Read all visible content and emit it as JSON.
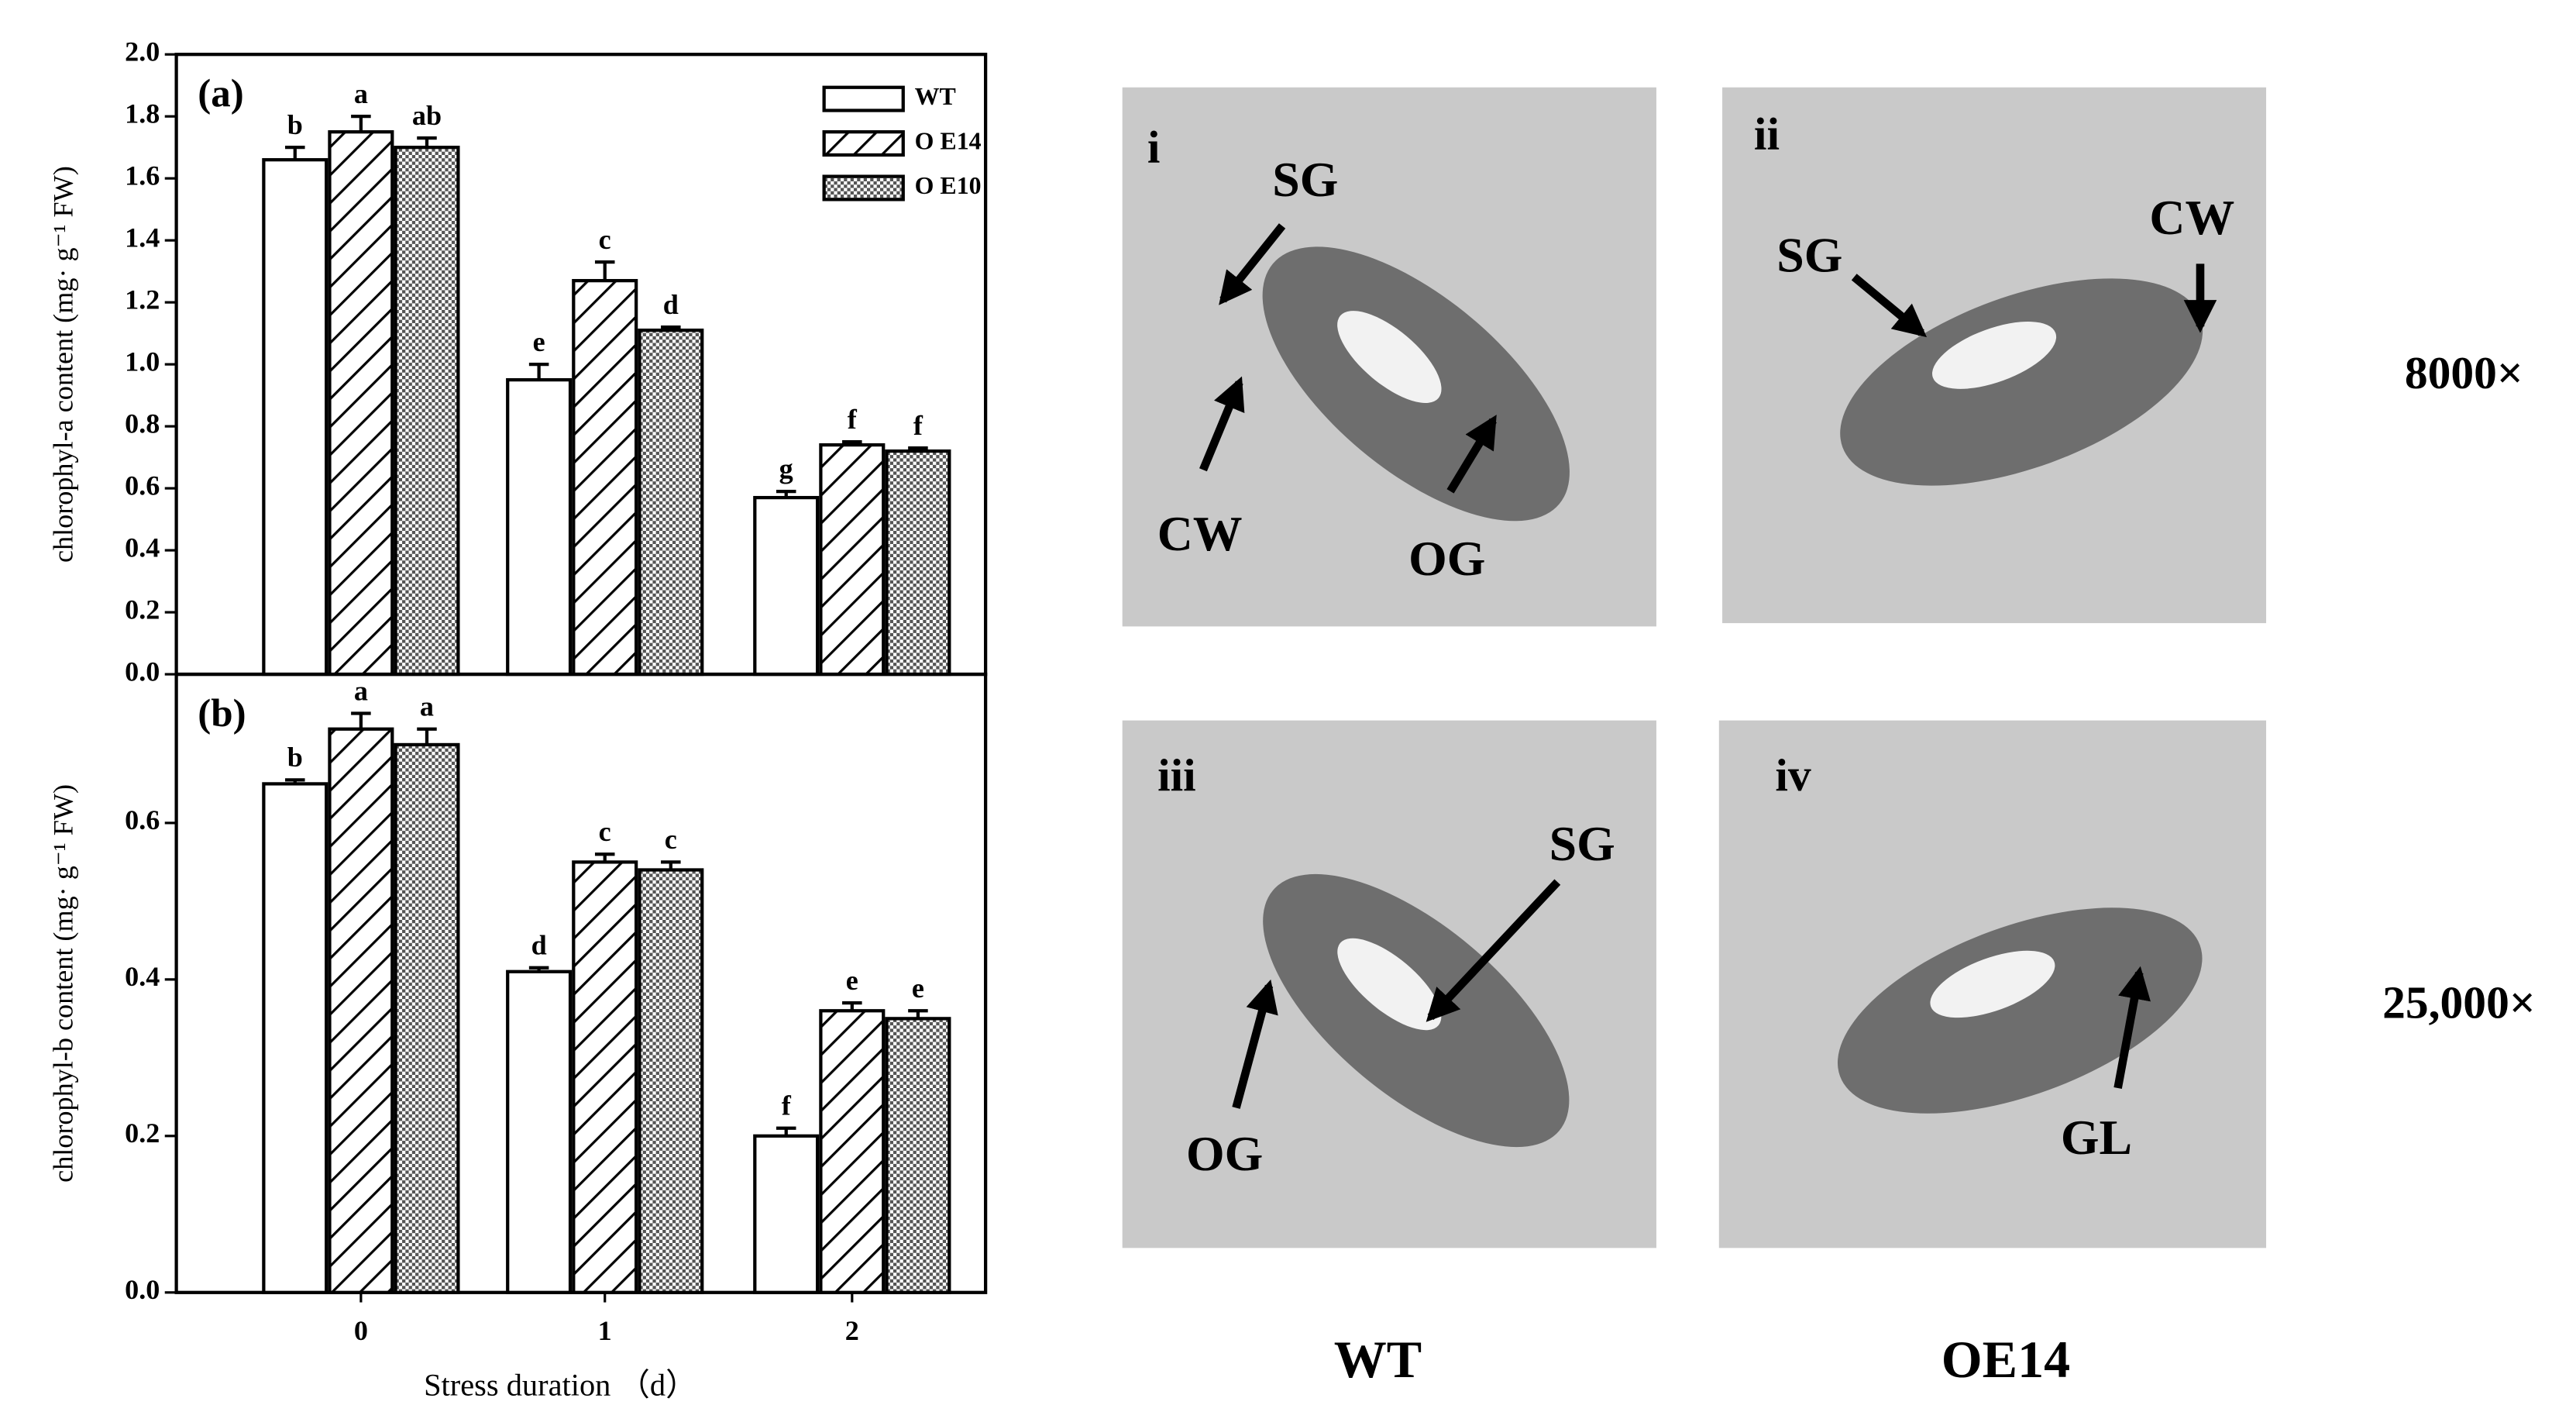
{
  "chart_data": [
    {
      "type": "bar",
      "panel_label": "(a)",
      "ylabel": "chlorophyl-a content (mg· g⁻¹ FW)",
      "ylim": [
        0,
        2.0
      ],
      "yticks": [
        {
          "value": 0,
          "label": "0.0"
        },
        0.2,
        0.4,
        0.6,
        0.8,
        {
          "value": 1,
          "label": "1.0"
        },
        1.2,
        1.4,
        1.6,
        1.8,
        {
          "value": 2,
          "label": "2.0"
        }
      ],
      "legend": "upper right",
      "series": [
        {
          "name": "WT",
          "pattern": "none",
          "values": [
            1.66,
            0.95,
            0.57
          ],
          "errors": [
            0.04,
            0.05,
            0.02
          ],
          "letters": [
            "b",
            "e",
            "g"
          ]
        },
        {
          "name": "O E14",
          "pattern": "hatch",
          "values": [
            1.75,
            1.27,
            0.74
          ],
          "errors": [
            0.05,
            0.06,
            0.01
          ],
          "letters": [
            "a",
            "c",
            "f"
          ]
        },
        {
          "name": "O E10",
          "pattern": "dots",
          "values": [
            1.7,
            1.11,
            0.72
          ],
          "errors": [
            0.03,
            0.01,
            0.01
          ],
          "letters": [
            "ab",
            "d",
            "f"
          ]
        }
      ]
    },
    {
      "type": "bar",
      "panel_label": "(b)",
      "ylabel": "chlorophyl-b content (mg· g⁻¹ FW)",
      "xlabel": "Stress duration （d）",
      "categories": [
        "0",
        "1",
        "2"
      ],
      "ylim": [
        0,
        0.79
      ],
      "yticks": [
        {
          "value": 0,
          "label": "0.0"
        },
        0.2,
        0.4,
        0.6
      ],
      "series": [
        {
          "pattern": "none",
          "values": [
            0.65,
            0.41,
            0.2
          ],
          "errors": [
            0.005,
            0.005,
            0.01
          ],
          "letters": [
            "b",
            "d",
            "f"
          ]
        },
        {
          "pattern": "hatch",
          "values": [
            0.72,
            0.55,
            0.36
          ],
          "errors": [
            0.02,
            0.01,
            0.01
          ],
          "letters": [
            "a",
            "c",
            "e"
          ]
        },
        {
          "pattern": "dots",
          "values": [
            0.7,
            0.54,
            0.35
          ],
          "errors": [
            0.02,
            0.01,
            0.01
          ],
          "letters": [
            "a",
            "c",
            "e"
          ]
        }
      ]
    }
  ],
  "micrographs": [
    {
      "label": "i",
      "annotations": [
        "SG",
        "CW",
        "OG"
      ]
    },
    {
      "label": "ii",
      "annotations": [
        "SG",
        "CW"
      ]
    },
    {
      "label": "iii",
      "annotations": [
        "SG",
        "OG"
      ]
    },
    {
      "label": "iv",
      "annotations": [
        "GL"
      ]
    }
  ],
  "column_labels": [
    "WT",
    "OE14"
  ],
  "row_labels": [
    "8000×",
    "25,000×"
  ]
}
